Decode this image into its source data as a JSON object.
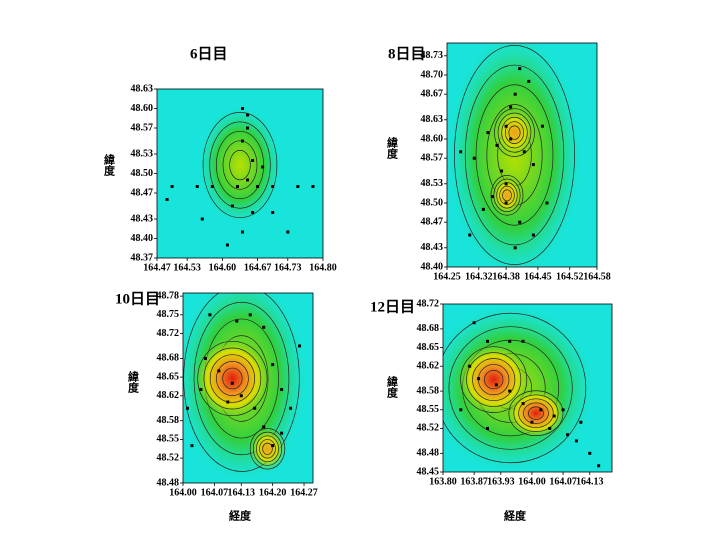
{
  "chart_data": [
    {
      "type": "scatter",
      "title": "6日目",
      "y_label": "緯度",
      "xlim": [
        164.47,
        164.8
      ],
      "ylim": [
        48.37,
        48.63
      ],
      "xticks": [
        164.47,
        164.53,
        {
          "value": 164.6,
          "label": "164.60"
        },
        164.67,
        164.73,
        {
          "value": 164.8,
          "label": "164.80"
        }
      ],
      "yticks": [
        48.37,
        {
          "value": 48.4,
          "label": "48.40"
        },
        48.43,
        48.47,
        {
          "value": 48.5,
          "label": "48.50"
        },
        48.53,
        48.57,
        {
          "value": 48.6,
          "label": "48.60"
        },
        48.63
      ],
      "x": [
        164.64,
        164.65,
        164.65,
        164.64,
        164.66,
        164.68,
        164.65,
        164.67,
        164.63,
        164.7,
        164.75,
        164.78,
        164.5,
        164.55,
        164.58,
        164.62,
        164.66,
        164.7,
        164.64,
        164.61,
        164.56,
        164.49,
        164.73
      ],
      "y": [
        48.6,
        48.59,
        48.57,
        48.55,
        48.52,
        48.51,
        48.49,
        48.48,
        48.48,
        48.48,
        48.48,
        48.48,
        48.48,
        48.48,
        48.48,
        48.45,
        48.44,
        48.44,
        48.41,
        48.39,
        48.43,
        48.46,
        48.41
      ]
    },
    {
      "type": "scatter",
      "title": "8日目",
      "y_label": "緯度",
      "xlim": [
        164.25,
        164.58
      ],
      "ylim": [
        48.4,
        48.75
      ],
      "xticks": [
        164.25,
        164.32,
        164.38,
        164.45,
        164.52,
        164.58
      ],
      "yticks": [
        {
          "value": 48.4,
          "label": "48.40"
        },
        48.43,
        48.47,
        {
          "value": 48.5,
          "label": "48.50"
        },
        48.53,
        48.57,
        {
          "value": 48.6,
          "label": "48.60"
        },
        48.63,
        48.67,
        {
          "value": 48.7,
          "label": "48.70"
        },
        48.73
      ],
      "x": [
        164.41,
        164.43,
        164.4,
        164.39,
        164.38,
        164.39,
        164.36,
        164.42,
        164.44,
        164.37,
        164.38,
        164.35,
        164.33,
        164.38,
        164.41,
        164.44,
        164.31,
        164.28,
        164.34,
        164.46,
        164.3,
        164.47,
        164.4
      ],
      "y": [
        48.71,
        48.69,
        48.67,
        48.65,
        48.62,
        48.6,
        48.59,
        48.58,
        48.56,
        48.55,
        48.53,
        48.51,
        48.49,
        48.5,
        48.47,
        48.45,
        48.57,
        48.58,
        48.61,
        48.62,
        48.45,
        48.5,
        48.43
      ]
    },
    {
      "type": "scatter",
      "title": "10日目",
      "y_label": "緯度",
      "x_label": "経度",
      "xlim": [
        164.0,
        164.29
      ],
      "ylim": [
        48.48,
        48.785
      ],
      "xticks": [
        {
          "value": 164.0,
          "label": "164.00"
        },
        164.07,
        164.13,
        {
          "value": 164.2,
          "label": "164.20"
        },
        164.27
      ],
      "yticks": [
        48.48,
        48.52,
        48.55,
        48.58,
        48.62,
        48.65,
        48.68,
        48.72,
        48.75,
        48.78
      ],
      "x": [
        164.06,
        164.12,
        164.15,
        164.18,
        164.05,
        164.08,
        164.11,
        164.13,
        164.1,
        164.04,
        164.16,
        164.2,
        164.22,
        164.24,
        164.18,
        164.2,
        164.22,
        164.01,
        164.02,
        164.26
      ],
      "y": [
        48.75,
        48.74,
        48.75,
        48.73,
        48.68,
        48.66,
        48.64,
        48.62,
        48.61,
        48.63,
        48.6,
        48.67,
        48.63,
        48.6,
        48.57,
        48.54,
        48.56,
        48.6,
        48.54,
        48.7
      ]
    },
    {
      "type": "scatter",
      "title": "12日目",
      "y_label": "緯度",
      "x_label": "経度",
      "xlim": [
        163.8,
        164.18
      ],
      "ylim": [
        48.45,
        48.72
      ],
      "xticks": [
        {
          "value": 163.8,
          "label": "163.80"
        },
        163.87,
        163.93,
        {
          "value": 164.0,
          "label": "164.00"
        },
        164.07,
        164.13
      ],
      "yticks": [
        48.45,
        48.48,
        48.52,
        48.55,
        48.58,
        48.62,
        48.65,
        48.68,
        48.72
      ],
      "x": [
        163.87,
        163.9,
        163.95,
        163.98,
        163.86,
        163.88,
        163.92,
        163.95,
        163.98,
        164.02,
        164.05,
        164.07,
        164.04,
        164.08,
        164.1,
        164.13,
        164.15,
        163.84,
        163.9,
        164.0,
        164.11
      ],
      "y": [
        48.69,
        48.66,
        48.66,
        48.66,
        48.62,
        48.6,
        48.59,
        48.58,
        48.56,
        48.55,
        48.54,
        48.55,
        48.52,
        48.51,
        48.5,
        48.48,
        48.46,
        48.55,
        48.52,
        48.53,
        48.53
      ]
    }
  ]
}
